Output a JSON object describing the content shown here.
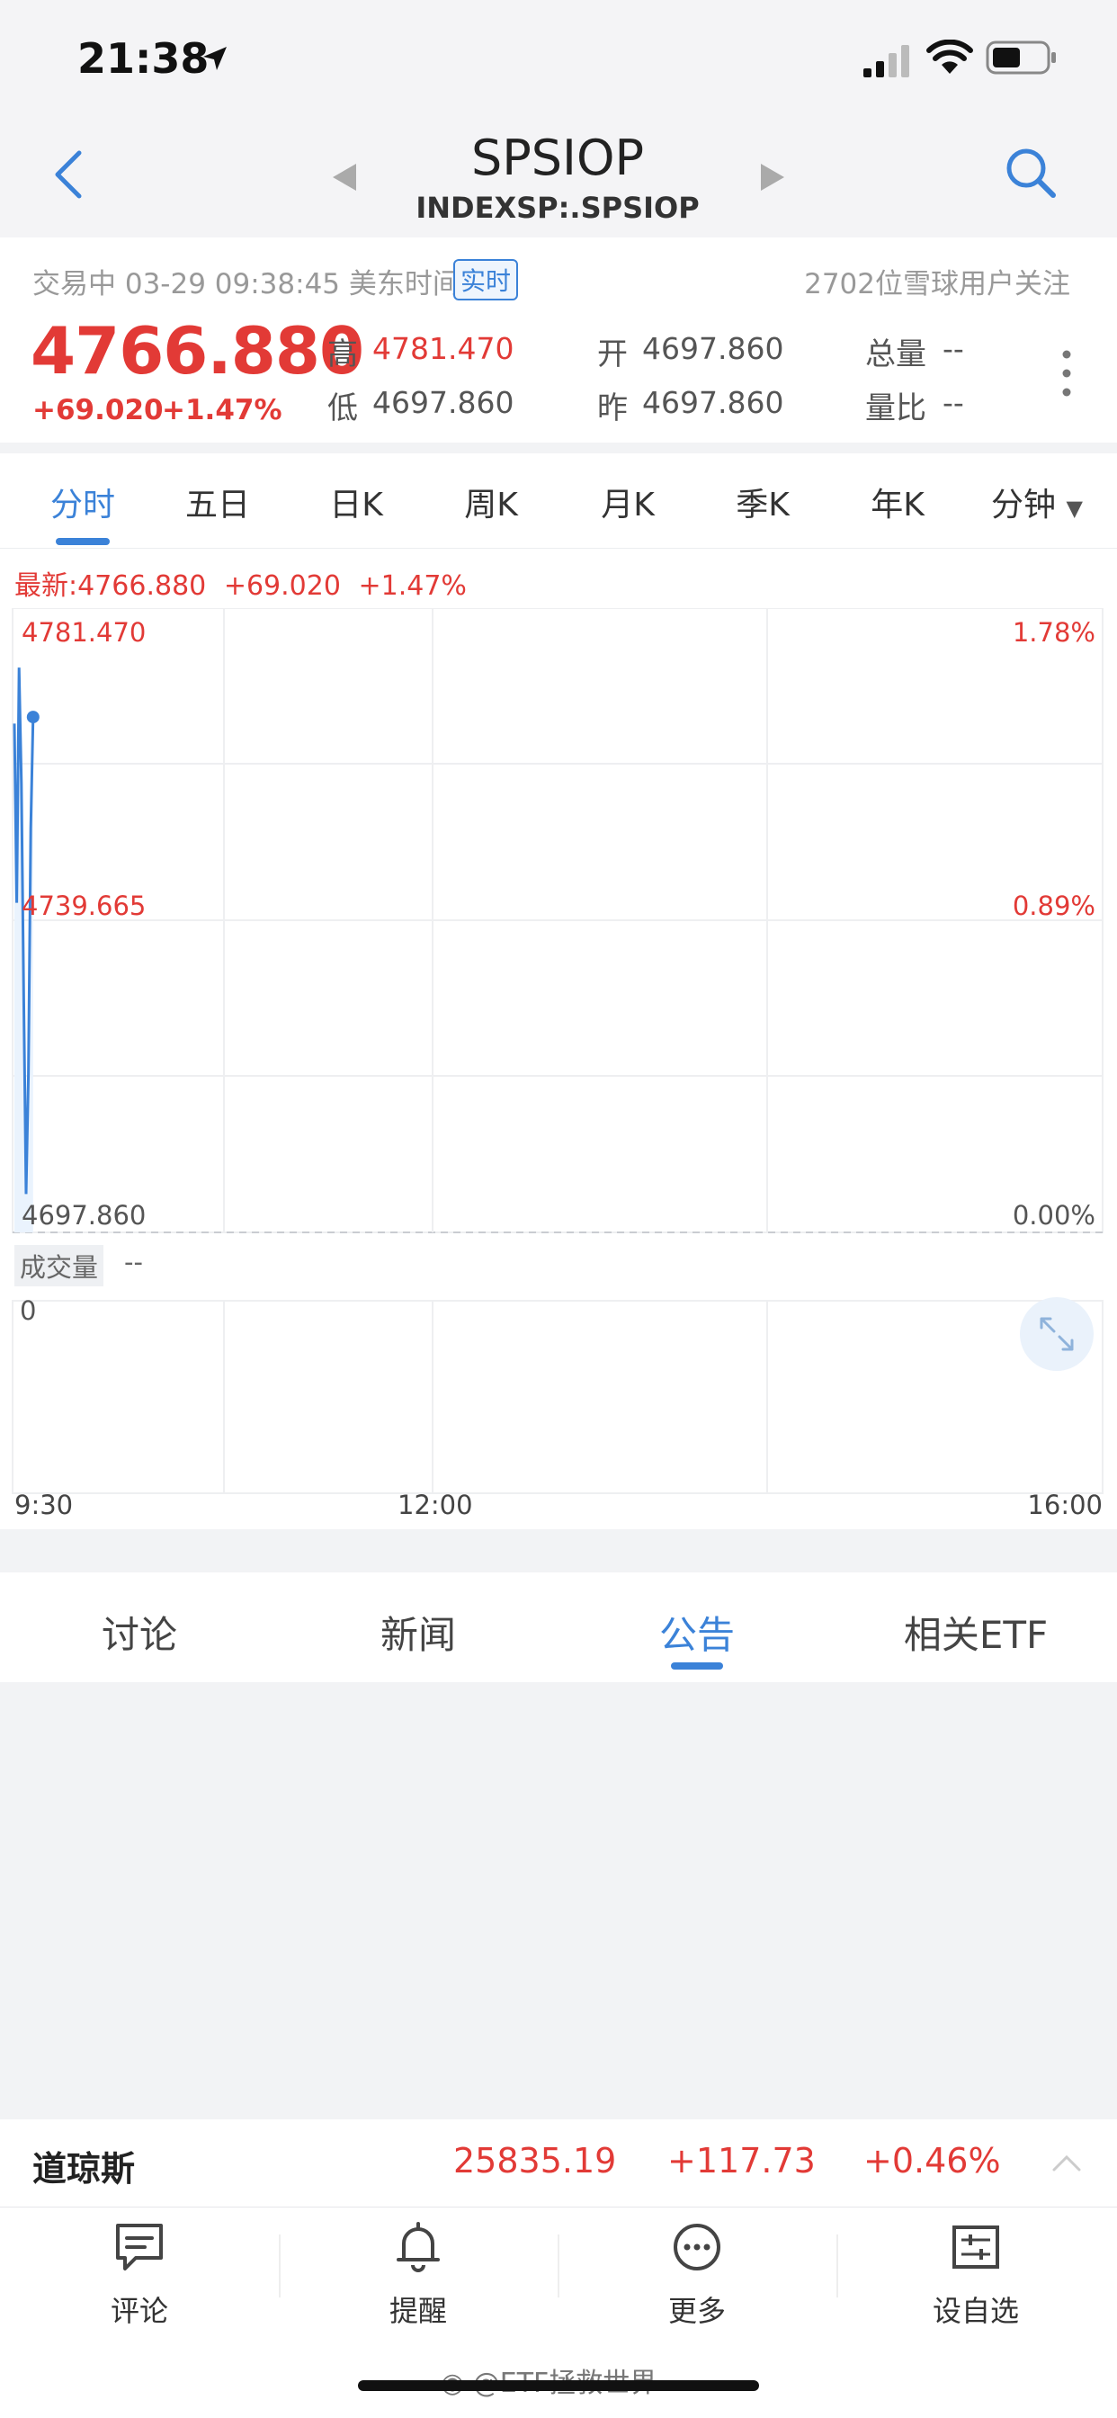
{
  "status_bar": {
    "time": "21:38"
  },
  "header": {
    "symbol": "SPSIOP",
    "code": "INDEXSP:.SPSIOP",
    "back_icon": "chevron-left-icon",
    "search_icon": "search-icon"
  },
  "quote": {
    "trade_status": "交易中 03-29 09:38:45 美东时间",
    "realtime_badge": "实时",
    "followers": "2702位雪球用户关注",
    "price": "4766.880",
    "change": "+69.020",
    "change_pct": "+1.47%",
    "stats": {
      "high_label": "高",
      "high_value": "4781.470",
      "low_label": "低",
      "low_value": "4697.860",
      "open_label": "开",
      "open_value": "4697.860",
      "prev_label": "昨",
      "prev_value": "4697.860",
      "volume_label": "总量",
      "volume_value": "--",
      "ratio_label": "量比",
      "ratio_value": "--"
    },
    "colors": {
      "up": "#e23a36",
      "accent": "#3b82d8"
    }
  },
  "period_tabs": [
    "分时",
    "五日",
    "日K",
    "周K",
    "月K",
    "季K",
    "年K",
    "分钟"
  ],
  "chart": {
    "latest_label": "最新:4766.880",
    "latest_change": "+69.020",
    "latest_pct": "+1.47%",
    "y_top": "4781.470",
    "y_mid": "4739.665",
    "y_bottom": "4697.860",
    "pct_top": "1.78%",
    "pct_mid": "0.89%",
    "pct_bottom": "0.00%",
    "volume_label": "成交量",
    "volume_value": "--",
    "volume_axis": "0",
    "x_start": "9:30",
    "x_mid": "12:00",
    "x_end": "16:00"
  },
  "chart_data": {
    "type": "line",
    "title": "",
    "xlabel": "",
    "ylabel": "",
    "ylim": [
      4697.86,
      4781.47
    ],
    "x": [
      "9:30",
      "9:31",
      "9:32",
      "9:33",
      "9:34",
      "9:35",
      "9:36",
      "9:37",
      "9:38"
    ],
    "series": [
      {
        "values": [
          4766.0,
          4742.0,
          4773.5,
          4758.0,
          4729.0,
          4703.0,
          4719.0,
          4752.0,
          4766.88
        ]
      }
    ],
    "x_ticks": [
      "9:30",
      "12:00",
      "16:00"
    ],
    "grid": true
  },
  "info_tabs": [
    "讨论",
    "新闻",
    "公告",
    "相关ETF"
  ],
  "ticker": {
    "name": "道琼斯",
    "value": "25835.19",
    "change": "+117.73",
    "pct": "+0.46%"
  },
  "bottom_nav": [
    {
      "label": "评论",
      "icon": "comment-icon"
    },
    {
      "label": "提醒",
      "icon": "bell-icon"
    },
    {
      "label": "更多",
      "icon": "more-icon"
    },
    {
      "label": "设自选",
      "icon": "watchlist-settings-icon"
    }
  ],
  "watermark": "@ETF拯救世界"
}
